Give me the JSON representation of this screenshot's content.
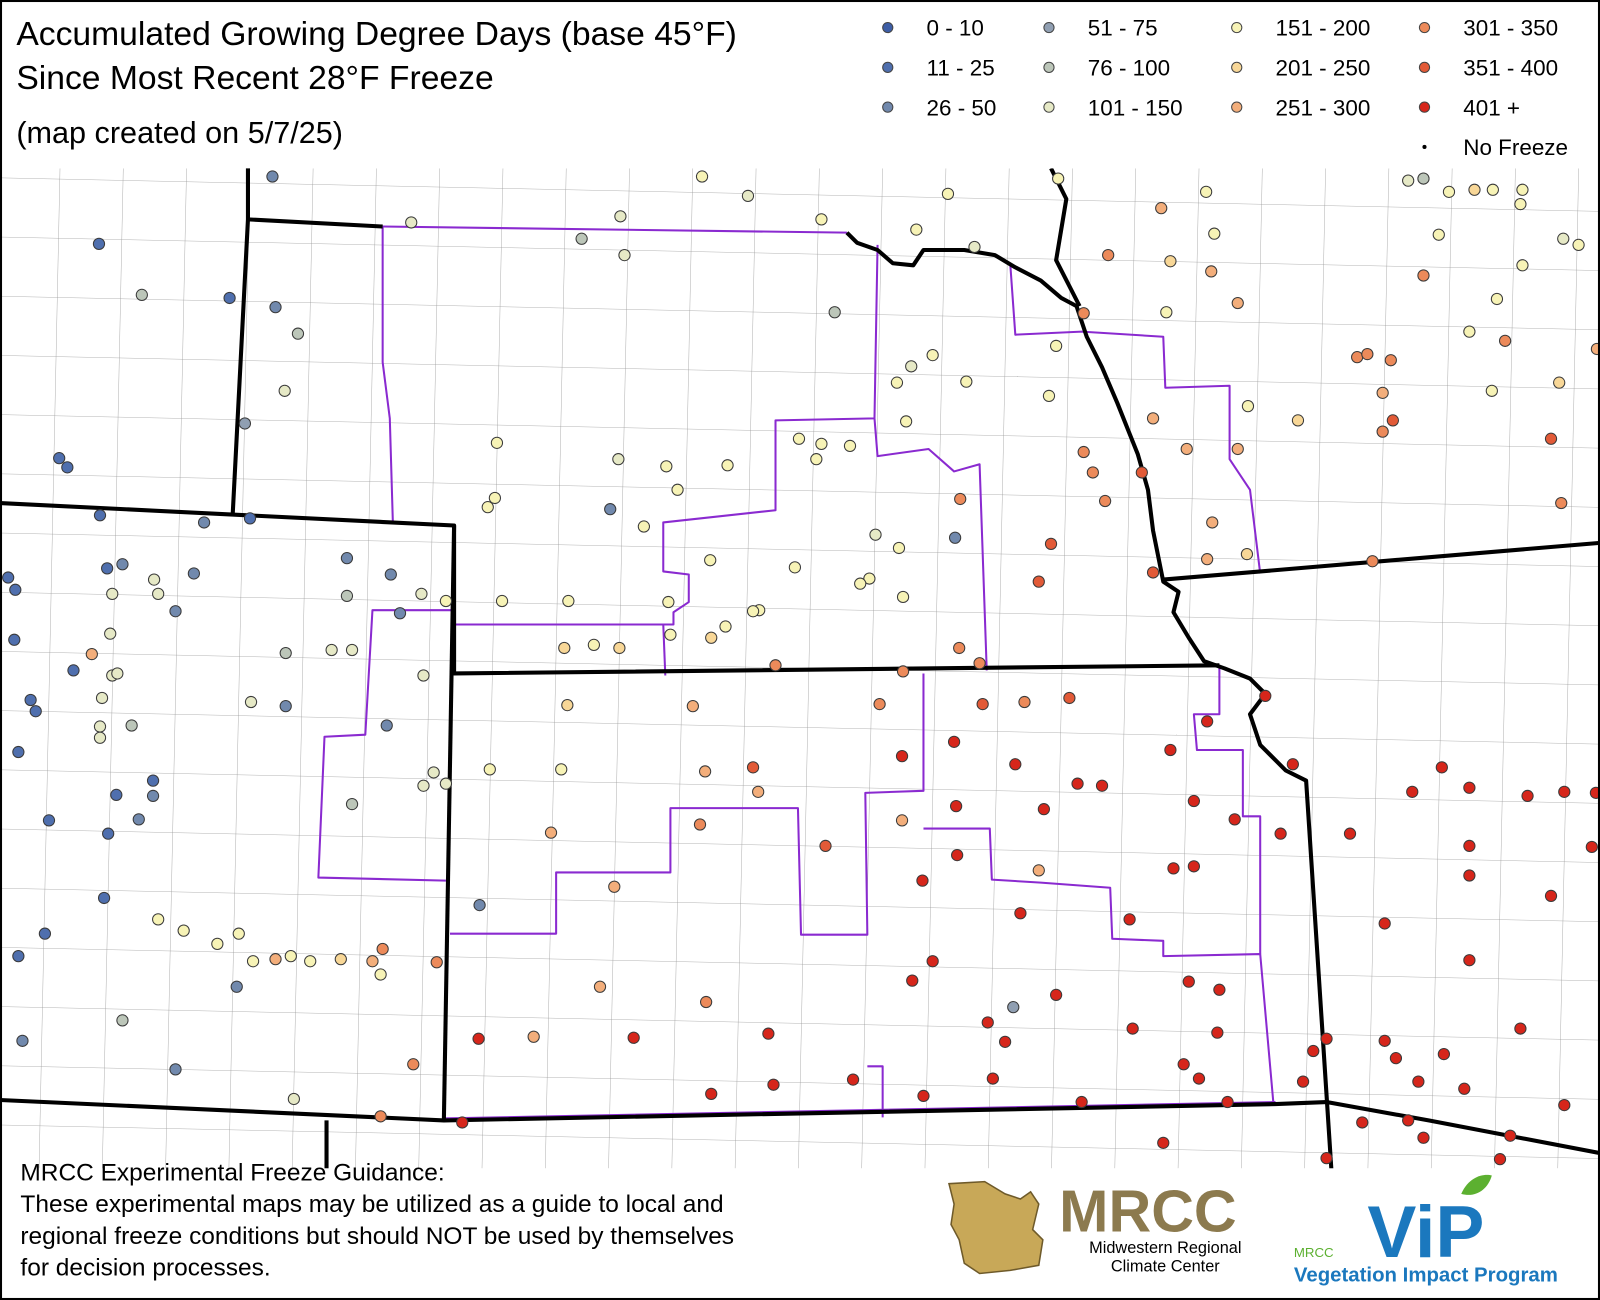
{
  "header": {
    "title": "Accumulated Growing Degree Days (base 45°F)",
    "subtitle": "Since Most Recent 28°F Freeze",
    "created": "(map created on 5/7/25)"
  },
  "legend": [
    {
      "label": "0 - 10",
      "color": "#3d5ea6"
    },
    {
      "label": "11 - 25",
      "color": "#4f6fae"
    },
    {
      "label": "26 - 50",
      "color": "#7189ad"
    },
    {
      "label": "51 - 75",
      "color": "#909fb2"
    },
    {
      "label": "76 - 100",
      "color": "#bcc6b9"
    },
    {
      "label": "101 - 150",
      "color": "#e6e9c6"
    },
    {
      "label": "151 - 200",
      "color": "#f7f3b6"
    },
    {
      "label": "201 - 250",
      "color": "#f8d797"
    },
    {
      "label": "251 - 300",
      "color": "#f3ae7b"
    },
    {
      "label": "301 - 350",
      "color": "#ec8a5a"
    },
    {
      "label": "351 - 400",
      "color": "#e25a37"
    },
    {
      "label": "401 +",
      "color": "#d6261b"
    },
    {
      "label": "No Freeze",
      "color": "#000000"
    }
  ],
  "footer": {
    "heading": "MRCC Experimental Freeze Guidance:",
    "lines": [
      "These experimental maps may be utilized as a guide to local and",
      "regional freeze conditions but should NOT be used by themselves",
      "for decision processes."
    ]
  },
  "logos": {
    "mrcc": "MRCC",
    "mrcc_name": [
      "Midwestern Regional",
      "Climate Center"
    ],
    "vip": "ViP",
    "vip_small": "MRCC",
    "vip_name": "Vegetation Impact Program"
  }
}
